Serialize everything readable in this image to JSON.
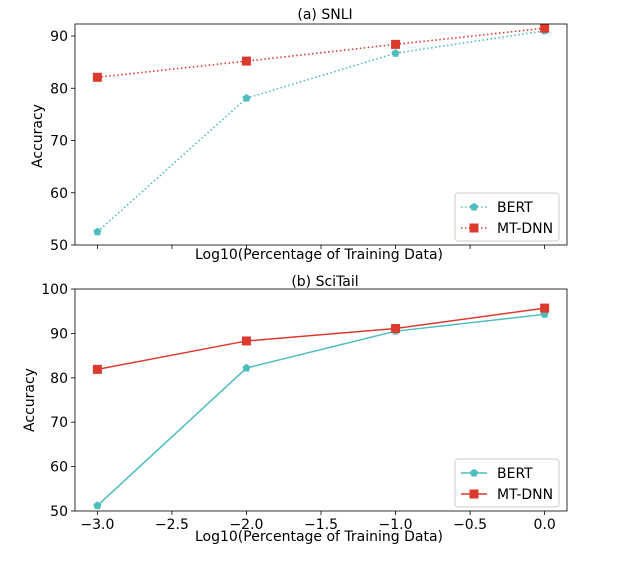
{
  "chart_data": [
    {
      "type": "line",
      "title": "(a) SNLI",
      "xlabel": "Log10(Percentage of Training Data)",
      "ylabel": "Accuracy",
      "xlim": [
        -3.15,
        0.15
      ],
      "ylim": [
        50,
        92.3
      ],
      "xticks": [
        -3.0,
        -2.5,
        -2.0,
        -1.5,
        -1.0,
        -0.5,
        0.0
      ],
      "show_xtick_labels": false,
      "yticks": [
        50,
        60,
        70,
        80,
        90
      ],
      "ytick_labels": [
        "50",
        "60",
        "70",
        "80",
        "90"
      ],
      "x": [
        -3,
        -2,
        -1,
        0
      ],
      "legend_position": "lower right",
      "series": [
        {
          "name": "BERT",
          "values": [
            52.5,
            78.1,
            86.7,
            91.0
          ],
          "color": "#4dbdbd",
          "marker": "pentagon",
          "linestyle": "dotted"
        },
        {
          "name": "MT-DNN",
          "values": [
            82.1,
            85.2,
            88.4,
            91.5
          ],
          "color": "#dd3a2f",
          "marker": "square",
          "linestyle": "dotted"
        }
      ]
    },
    {
      "type": "line",
      "title": "(b) SciTail",
      "xlabel": "Log10(Percentage of Training Data)",
      "ylabel": "Accuracy",
      "xlim": [
        -3.15,
        0.15
      ],
      "ylim": [
        50,
        100
      ],
      "xticks": [
        -3.0,
        -2.5,
        -2.0,
        -1.5,
        -1.0,
        -0.5,
        0.0
      ],
      "xtick_labels": [
        "−3.0",
        "−2.5",
        "−2.0",
        "−1.5",
        "−1.0",
        "−0.5",
        "0.0"
      ],
      "show_xtick_labels": true,
      "yticks": [
        50,
        60,
        70,
        80,
        90,
        100
      ],
      "ytick_labels": [
        "50",
        "60",
        "70",
        "80",
        "90",
        "100"
      ],
      "x": [
        -3,
        -2,
        -1,
        0
      ],
      "legend_position": "lower right",
      "series": [
        {
          "name": "BERT",
          "values": [
            51.2,
            82.2,
            90.5,
            94.3
          ],
          "color": "#4dbdbd",
          "marker": "pentagon",
          "linestyle": "solid"
        },
        {
          "name": "MT-DNN",
          "values": [
            81.9,
            88.3,
            91.1,
            95.7
          ],
          "color": "#dd3a2f",
          "marker": "square",
          "linestyle": "solid"
        }
      ]
    }
  ]
}
